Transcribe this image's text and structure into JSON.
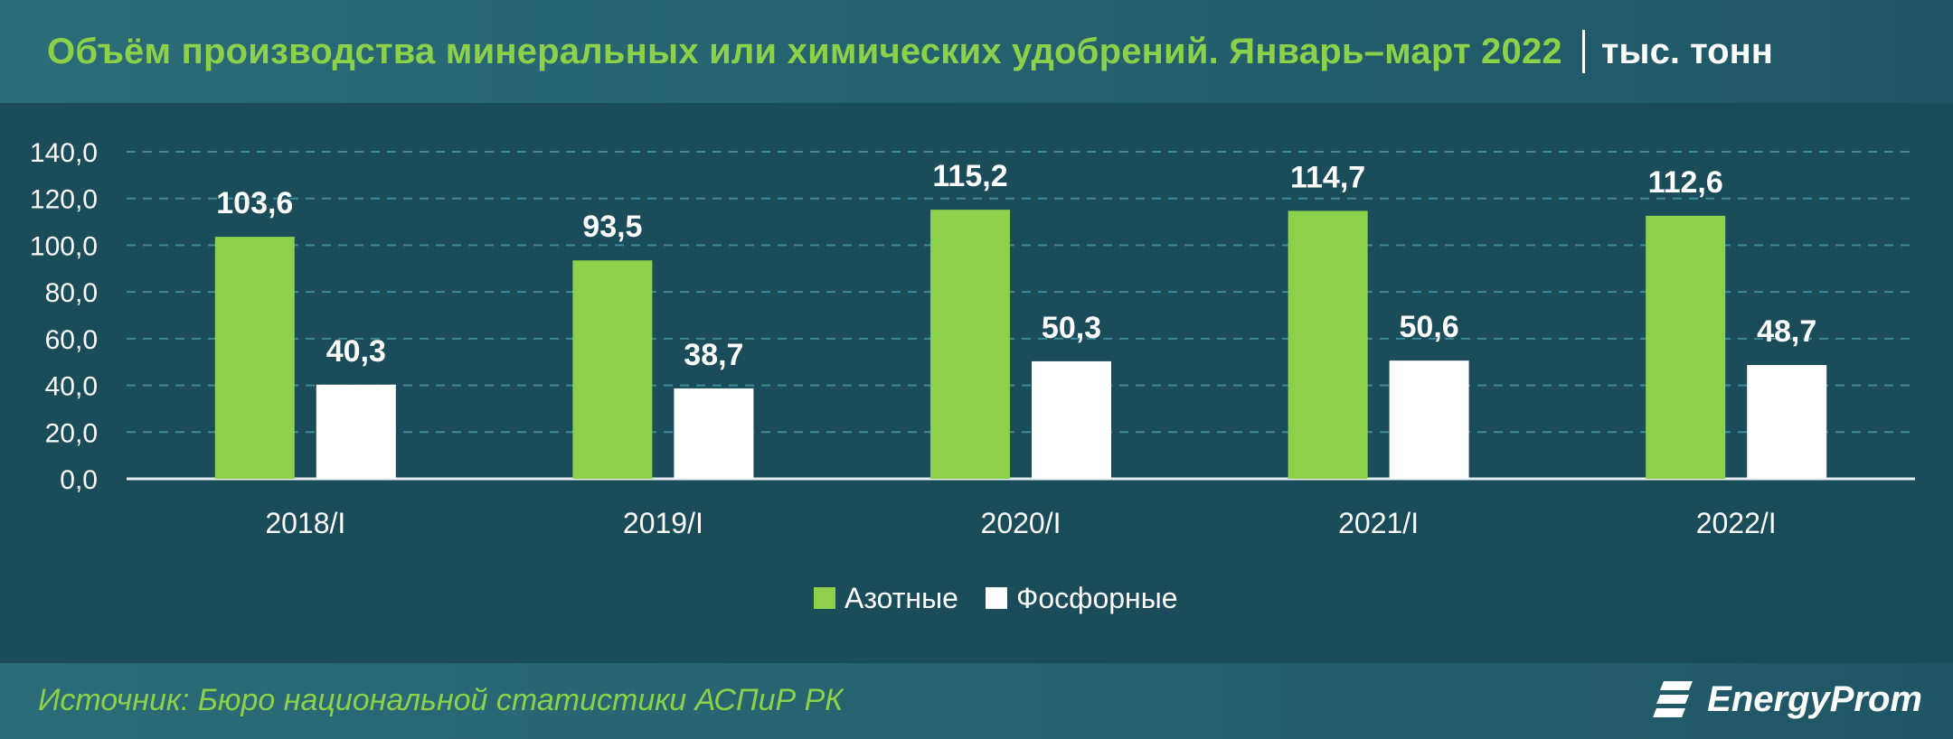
{
  "header": {
    "title": "Объём производства минеральных или химических удобрений. Январь–март 2022",
    "unit": "тыс. тонн"
  },
  "footer": {
    "source": "Источник: Бюро национальной статистики АСПиР РК",
    "logo_text": "EnergyProm",
    "logo_icon": "energyprom-logo-icon"
  },
  "colors": {
    "background": "#1a4c5a",
    "header_bg": "#2b6c79",
    "accent_green": "#8dd14b",
    "bar_white": "#ffffff",
    "grid": "#3f8a98"
  },
  "chart_data": {
    "type": "bar",
    "categories": [
      "2018/I",
      "2019/I",
      "2020/I",
      "2021/I",
      "2022/I"
    ],
    "series": [
      {
        "name": "Азотные",
        "color": "#8dd14b",
        "values": [
          103.6,
          93.5,
          115.2,
          114.7,
          112.6
        ],
        "labels": [
          "103,6",
          "93,5",
          "115,2",
          "114,7",
          "112,6"
        ]
      },
      {
        "name": "Фосфорные",
        "color": "#ffffff",
        "values": [
          40.3,
          38.7,
          50.3,
          50.6,
          48.7
        ],
        "labels": [
          "40,3",
          "38,7",
          "50,3",
          "50,6",
          "48,7"
        ]
      }
    ],
    "ylim": [
      0,
      140
    ],
    "yticks": [
      "0,0",
      "20,0",
      "40,0",
      "60,0",
      "80,0",
      "100,0",
      "120,0",
      "140,0"
    ],
    "grid": true,
    "legend_position": "bottom-center"
  }
}
